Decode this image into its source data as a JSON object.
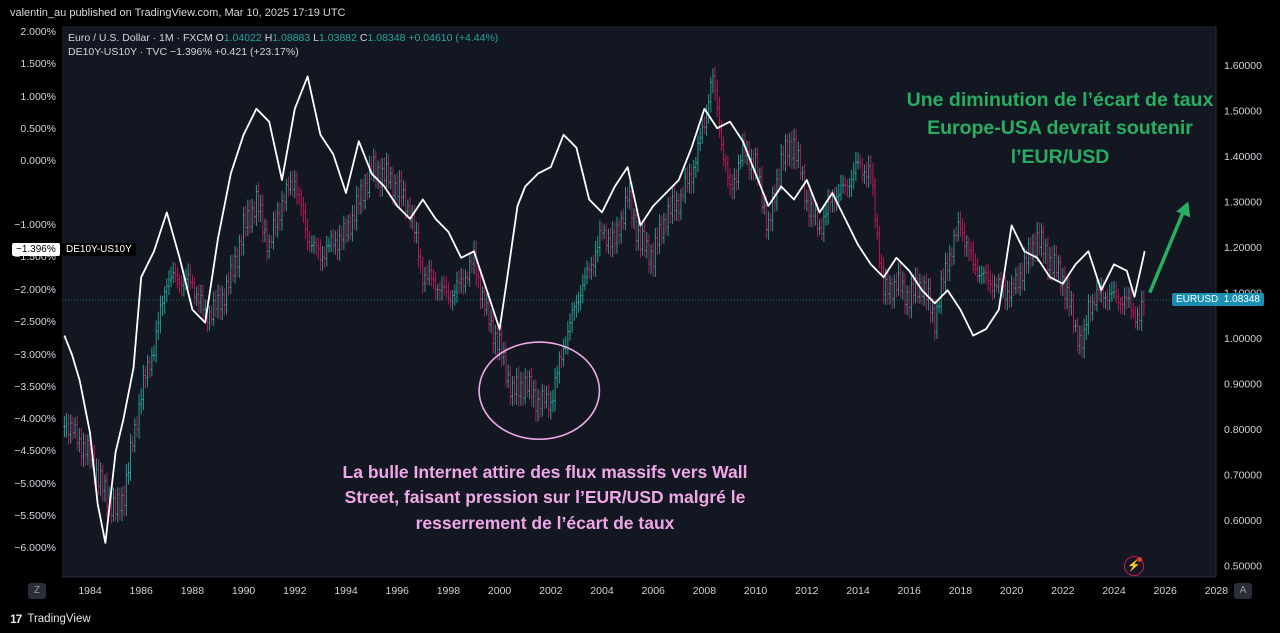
{
  "header": {
    "published": "valentin_au published on TradingView.com, Mar 10, 2025 17:19 UTC"
  },
  "legend": {
    "line1": {
      "symbol": "Euro / U.S. Dollar · 1M · FXCM",
      "o_label": "O",
      "o": "1.04022",
      "h_label": "H",
      "h": "1.08883",
      "l_label": "L",
      "l": "1.03882",
      "c_label": "C",
      "c": "1.08348",
      "change": "+0.04610 (+4.44%)"
    },
    "line2": {
      "symbol": "DE10Y-US10Y · TVC",
      "last": "−1.396%",
      "change": "+0.421 (+23.17%)"
    }
  },
  "pills": {
    "left_value": "−1.396%",
    "left_name": "DE10Y-US10Y",
    "right_name": "EURUSD",
    "right_value": "1.08348"
  },
  "annotations": {
    "green": "Une diminution de l’écart de taux Europe-USA devrait soutenir l’EUR/USD",
    "pink": "La bulle Internet attire des flux massifs vers Wall Street, faisant pression sur l’EUR/USD malgré le resserrement de l’écart de taux"
  },
  "axis_buttons": {
    "left": "Z",
    "right": "A"
  },
  "footer": {
    "brand": "TradingView",
    "logo": "17"
  },
  "colors": {
    "background": "#000000",
    "spread_line": "#ffffff",
    "up": "#26a69a",
    "down": "#c2185b",
    "green_annotation": "#27ae60",
    "pink_annotation": "#f0a7e8"
  },
  "chart_data": {
    "type": "line",
    "title": "",
    "x_ticks": [
      "1984",
      "1986",
      "1988",
      "1990",
      "1992",
      "1994",
      "1996",
      "1998",
      "2000",
      "2002",
      "2004",
      "2006",
      "2008",
      "2010",
      "2012",
      "2014",
      "2016",
      "2018",
      "2020",
      "2022",
      "2024",
      "2026",
      "2028"
    ],
    "left_axis": {
      "ticks": [
        "2.000%",
        "1.500%",
        "1.000%",
        "0.500%",
        "0.000%",
        "−1.000%",
        "−1.500%",
        "−2.000%",
        "−2.500%",
        "−3.000%",
        "−3.500%",
        "−4.000%",
        "−4.500%",
        "−5.000%",
        "−5.500%",
        "−6.000%"
      ],
      "range": [
        -6.0,
        2.0
      ]
    },
    "right_axis": {
      "ticks": [
        "1.60000",
        "1.50000",
        "1.40000",
        "1.30000",
        "1.20000",
        "1.10000",
        "1.00000",
        "0.90000",
        "0.80000",
        "0.70000",
        "0.60000",
        "0.50000"
      ],
      "range": [
        0.5,
        1.65
      ]
    },
    "series": [
      {
        "name": "DE10Y-US10Y",
        "x": [
          1983.0,
          1983.3,
          1983.6,
          1984.0,
          1984.3,
          1984.6,
          1985.0,
          1985.3,
          1985.7,
          1986.0,
          1986.5,
          1987.0,
          1987.5,
          1988.0,
          1988.5,
          1989.0,
          1989.5,
          1990.0,
          1990.5,
          1991.0,
          1991.5,
          1992.0,
          1992.5,
          1993.0,
          1993.5,
          1994.0,
          1994.5,
          1995.0,
          1995.5,
          1996.0,
          1996.5,
          1997.0,
          1997.5,
          1998.0,
          1998.5,
          1999.0,
          1999.5,
          2000.0,
          2000.3,
          2000.7,
          2001.0,
          2001.5,
          2002.0,
          2002.5,
          2003.0,
          2003.5,
          2004.0,
          2004.5,
          2005.0,
          2005.5,
          2006.0,
          2006.5,
          2007.0,
          2007.5,
          2008.0,
          2008.5,
          2009.0,
          2009.5,
          2010.0,
          2010.5,
          2011.0,
          2011.5,
          2012.0,
          2012.5,
          2013.0,
          2013.5,
          2014.0,
          2014.5,
          2015.0,
          2015.5,
          2016.0,
          2016.5,
          2017.0,
          2017.5,
          2018.0,
          2018.5,
          2019.0,
          2019.5,
          2020.0,
          2020.5,
          2021.0,
          2021.5,
          2022.0,
          2022.5,
          2023.0,
          2023.5,
          2024.0,
          2024.5,
          2024.8,
          2025.2
        ],
        "values": [
          -2.7,
          -3.0,
          -3.4,
          -4.2,
          -5.3,
          -5.9,
          -4.5,
          -4.0,
          -3.2,
          -1.8,
          -1.4,
          -0.8,
          -1.5,
          -2.3,
          -2.5,
          -1.2,
          -0.2,
          0.4,
          0.8,
          0.6,
          -0.3,
          0.8,
          1.3,
          0.4,
          0.1,
          -0.5,
          0.3,
          -0.2,
          -0.4,
          -0.7,
          -0.9,
          -0.6,
          -0.9,
          -1.1,
          -1.5,
          -1.4,
          -2.0,
          -2.6,
          -1.8,
          -0.7,
          -0.4,
          -0.2,
          -0.1,
          0.4,
          0.2,
          -0.6,
          -0.8,
          -0.4,
          -0.1,
          -1.0,
          -0.7,
          -0.5,
          -0.3,
          0.2,
          0.8,
          0.5,
          0.6,
          0.3,
          -0.2,
          -0.7,
          -0.4,
          -0.6,
          -0.3,
          -0.8,
          -0.5,
          -0.9,
          -1.3,
          -1.6,
          -1.8,
          -1.5,
          -1.7,
          -2.0,
          -2.2,
          -2.0,
          -2.3,
          -2.7,
          -2.6,
          -2.3,
          -1.0,
          -1.4,
          -1.5,
          -1.8,
          -1.9,
          -1.6,
          -1.4,
          -2.0,
          -1.6,
          -1.7,
          -2.1,
          -1.396
        ]
      },
      {
        "name": "EURUSD",
        "x": [
          1983.0,
          1983.5,
          1984.0,
          1984.5,
          1985.0,
          1985.3,
          1985.7,
          1986.0,
          1986.5,
          1987.0,
          1987.5,
          1988.0,
          1988.5,
          1989.0,
          1989.5,
          1990.0,
          1990.5,
          1991.0,
          1991.5,
          1992.0,
          1992.5,
          1993.0,
          1993.5,
          1994.0,
          1994.5,
          1995.0,
          1995.5,
          1996.0,
          1996.5,
          1997.0,
          1997.5,
          1998.0,
          1998.5,
          1999.0,
          1999.5,
          2000.0,
          2000.5,
          2001.0,
          2001.5,
          2002.0,
          2002.5,
          2003.0,
          2003.5,
          2004.0,
          2004.5,
          2005.0,
          2005.5,
          2006.0,
          2006.5,
          2007.0,
          2007.5,
          2008.0,
          2008.3,
          2008.7,
          2009.0,
          2009.5,
          2010.0,
          2010.5,
          2011.0,
          2011.5,
          2012.0,
          2012.5,
          2013.0,
          2013.5,
          2014.0,
          2014.5,
          2015.0,
          2015.5,
          2016.0,
          2016.5,
          2017.0,
          2017.5,
          2018.0,
          2018.5,
          2019.0,
          2019.5,
          2020.0,
          2020.5,
          2021.0,
          2021.5,
          2022.0,
          2022.5,
          2022.8,
          2023.0,
          2023.5,
          2024.0,
          2024.5,
          2025.0,
          2025.2
        ],
        "values": [
          0.82,
          0.78,
          0.74,
          0.67,
          0.62,
          0.65,
          0.78,
          0.88,
          0.98,
          1.13,
          1.13,
          1.12,
          1.05,
          1.07,
          1.13,
          1.24,
          1.3,
          1.2,
          1.3,
          1.35,
          1.22,
          1.18,
          1.21,
          1.23,
          1.3,
          1.37,
          1.36,
          1.33,
          1.28,
          1.14,
          1.12,
          1.09,
          1.12,
          1.17,
          1.05,
          0.98,
          0.88,
          0.9,
          0.86,
          0.86,
          0.98,
          1.08,
          1.15,
          1.23,
          1.21,
          1.31,
          1.21,
          1.18,
          1.27,
          1.3,
          1.36,
          1.47,
          1.58,
          1.42,
          1.32,
          1.41,
          1.38,
          1.24,
          1.39,
          1.43,
          1.3,
          1.24,
          1.31,
          1.33,
          1.38,
          1.36,
          1.1,
          1.12,
          1.09,
          1.12,
          1.04,
          1.17,
          1.25,
          1.16,
          1.13,
          1.11,
          1.1,
          1.16,
          1.22,
          1.17,
          1.13,
          1.02,
          0.98,
          1.07,
          1.1,
          1.09,
          1.08,
          1.04,
          1.08348
        ]
      }
    ],
    "ellipse_range": {
      "x": [
        1999.2,
        2003.9
      ],
      "y": [
        -2.8,
        -4.3
      ]
    },
    "arrow": {
      "from": [
        2025.4,
        1.1
      ],
      "to": [
        2026.9,
        1.3
      ]
    }
  }
}
